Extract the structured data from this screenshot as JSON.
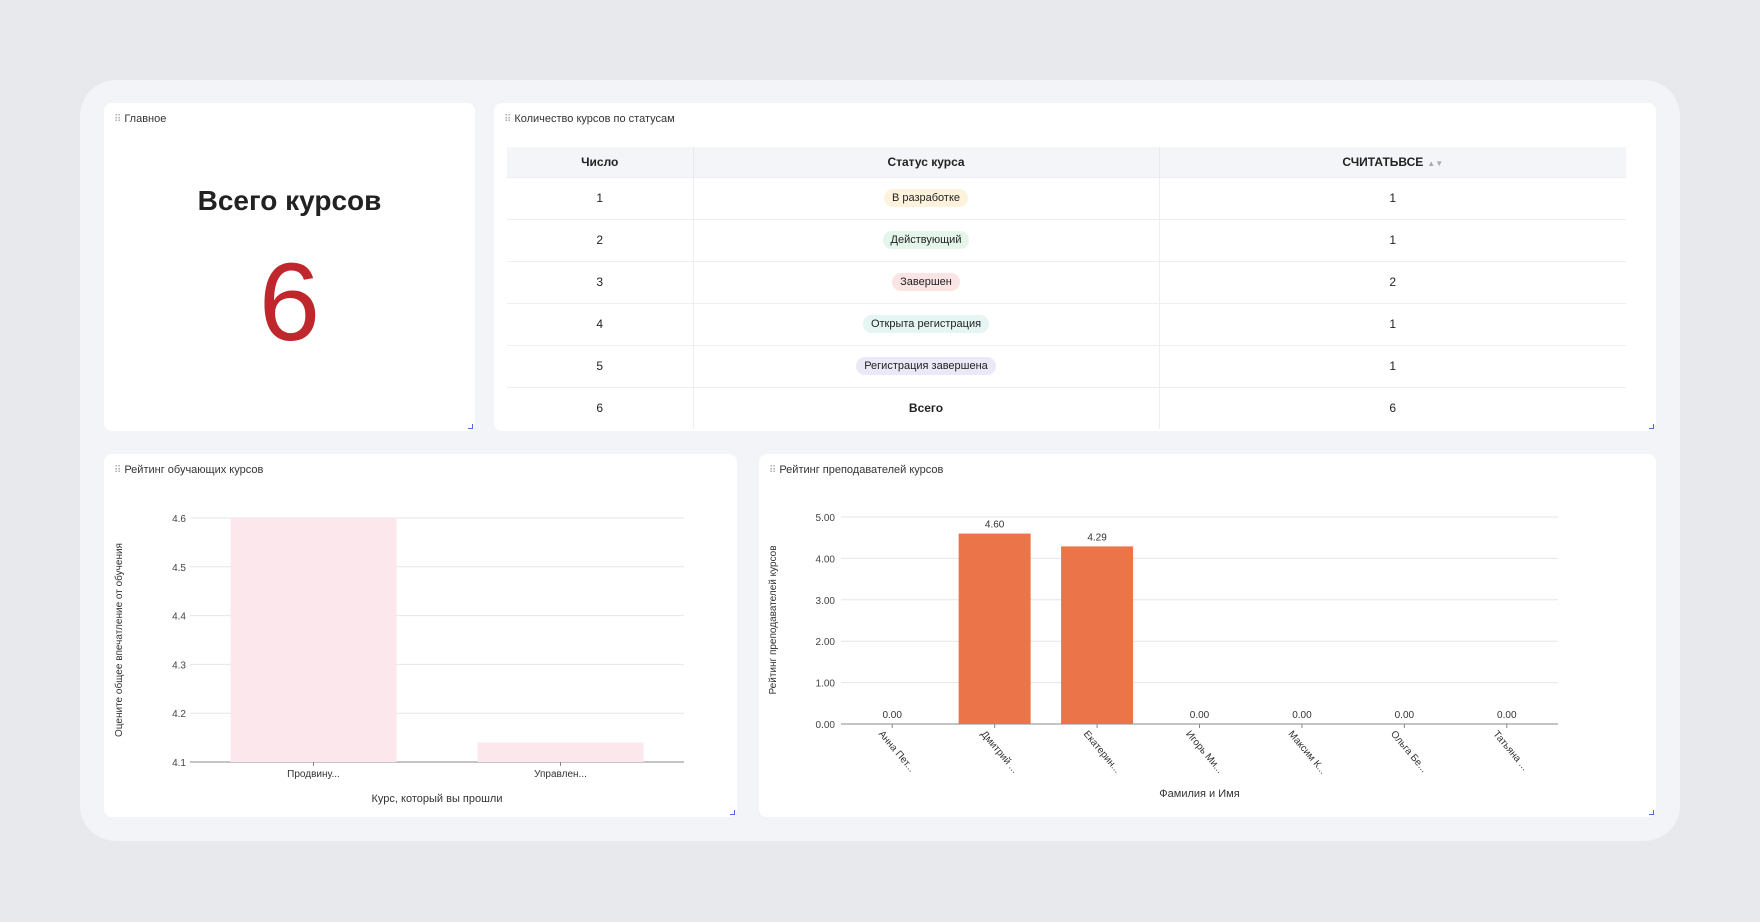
{
  "main_card": {
    "title": "Главное",
    "kpi_label": "Всего курсов",
    "kpi_value": "6"
  },
  "status_card": {
    "title": "Количество курсов по статусам",
    "columns": [
      "Число",
      "Статус курса",
      "СЧИТАТЬВСЕ"
    ],
    "rows": [
      {
        "num": "1",
        "status": "В разработке",
        "count": "1",
        "color": "#fdf3dc"
      },
      {
        "num": "2",
        "status": "Действующий",
        "count": "1",
        "color": "#e4f5ea"
      },
      {
        "num": "3",
        "status": "Завершен",
        "count": "2",
        "color": "#fbe4e4"
      },
      {
        "num": "4",
        "status": "Открыта регистрация",
        "count": "1",
        "color": "#e4f5f3"
      },
      {
        "num": "5",
        "status": "Регистрация завершена",
        "count": "1",
        "color": "#ebe9f7"
      }
    ],
    "total_row": {
      "num": "6",
      "status": "Всего",
      "count": "6"
    }
  },
  "rating_card": {
    "title": "Рейтинг обучающих курсов",
    "chart_data": {
      "type": "bar",
      "categories": [
        "Продвину...",
        "Управлен..."
      ],
      "values": [
        4.6,
        4.14
      ],
      "xlabel": "Курс, который вы прошли",
      "ylabel": "Оцените общее впечатление от обучения",
      "ylim": [
        4.1,
        4.6
      ],
      "yticks": [
        "4.6",
        "4.5",
        "4.4",
        "4.3",
        "4.2",
        "4.1"
      ],
      "grid": true,
      "color": "#fce8ec"
    }
  },
  "teachers_card": {
    "title": "Рейтинг преподавателей курсов",
    "chart_data": {
      "type": "bar",
      "categories": [
        "Анна Пет...",
        "Дмитрий ...",
        "Екатерин...",
        "Игорь Ми...",
        "Максим К...",
        "Ольга Бе...",
        "Татьяна ..."
      ],
      "values": [
        0.0,
        4.6,
        4.29,
        0.0,
        0.0,
        0.0,
        0.0
      ],
      "data_labels": [
        "0.00",
        "4.60",
        "4.29",
        "0.00",
        "0.00",
        "0.00",
        "0.00"
      ],
      "xlabel": "Фамилия и Имя",
      "ylabel": "Рейтинг преподавателей курсов",
      "ylim": [
        0,
        5
      ],
      "yticks": [
        "5.00",
        "4.00",
        "3.00",
        "2.00",
        "1.00",
        "0.00"
      ],
      "grid": true,
      "color": "#ec7449"
    }
  }
}
